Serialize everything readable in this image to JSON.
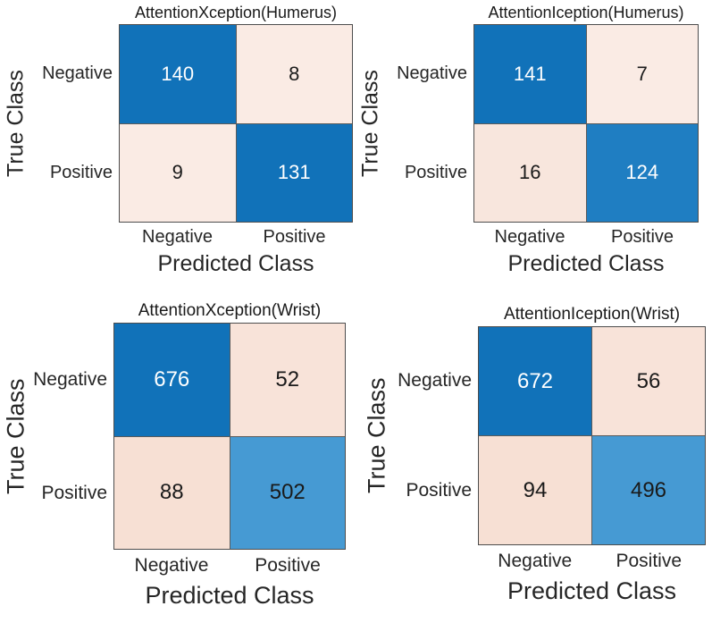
{
  "figure": {
    "background": "#ffffff",
    "layout": "2x2 grid of confusion matrices"
  },
  "colors": {
    "diagonal_dark_blue": "#1172b9",
    "diagonal_medium_blue": "#1f7ec2",
    "diagonal_light_blue": "#469ad3",
    "off_diagonal_pink": "#f9e9e2",
    "cell_divider": "#5a5a5a",
    "matrix_border": "#4d4d4d",
    "text_dark": "#1a1a1a",
    "text_light": "#ffffff"
  },
  "chart_data": [
    {
      "type": "heatmap",
      "title": "AttentionXception(Humerus)",
      "xlabel": "Predicted Class",
      "ylabel": "True Class",
      "x_categories": [
        "Negative",
        "Positive"
      ],
      "y_categories": [
        "Negative",
        "Positive"
      ],
      "matrix": [
        [
          140,
          8
        ],
        [
          9,
          131
        ]
      ],
      "cells": [
        {
          "value": "140",
          "bg": "#1172b9",
          "fg": "#ffffff"
        },
        {
          "value": "8",
          "bg": "#faebe4",
          "fg": "#1a1a1a"
        },
        {
          "value": "9",
          "bg": "#faebe4",
          "fg": "#1a1a1a"
        },
        {
          "value": "131",
          "bg": "#1172b9",
          "fg": "#ffffff"
        }
      ]
    },
    {
      "type": "heatmap",
      "title": "AttentionIception(Humerus)",
      "xlabel": "Predicted Class",
      "ylabel": "True Class",
      "x_categories": [
        "Negative",
        "Positive"
      ],
      "y_categories": [
        "Negative",
        "Positive"
      ],
      "matrix": [
        [
          141,
          7
        ],
        [
          16,
          124
        ]
      ],
      "cells": [
        {
          "value": "141",
          "bg": "#1172b9",
          "fg": "#ffffff"
        },
        {
          "value": "7",
          "bg": "#faebe4",
          "fg": "#1a1a1a"
        },
        {
          "value": "16",
          "bg": "#f8e6dd",
          "fg": "#1a1a1a"
        },
        {
          "value": "124",
          "bg": "#1f7ec2",
          "fg": "#ffffff"
        }
      ]
    },
    {
      "type": "heatmap",
      "title": "AttentionXception(Wrist)",
      "xlabel": "Predicted Class",
      "ylabel": "True Class",
      "x_categories": [
        "Negative",
        "Positive"
      ],
      "y_categories": [
        "Negative",
        "Positive"
      ],
      "matrix": [
        [
          676,
          52
        ],
        [
          88,
          502
        ]
      ],
      "cells": [
        {
          "value": "676",
          "bg": "#1172b9",
          "fg": "#ffffff"
        },
        {
          "value": "52",
          "bg": "#f8e3d9",
          "fg": "#1a1a1a"
        },
        {
          "value": "88",
          "bg": "#f7e0d4",
          "fg": "#1a1a1a"
        },
        {
          "value": "502",
          "bg": "#469ad3",
          "fg": "#1a1a1a"
        }
      ]
    },
    {
      "type": "heatmap",
      "title": "AttentionIception(Wrist)",
      "xlabel": "Predicted Class",
      "ylabel": "True Class",
      "x_categories": [
        "Negative",
        "Positive"
      ],
      "y_categories": [
        "Negative",
        "Positive"
      ],
      "matrix": [
        [
          672,
          56
        ],
        [
          94,
          496
        ]
      ],
      "cells": [
        {
          "value": "672",
          "bg": "#1172b9",
          "fg": "#ffffff"
        },
        {
          "value": "56",
          "bg": "#f8e3d9",
          "fg": "#1a1a1a"
        },
        {
          "value": "94",
          "bg": "#f7e0d4",
          "fg": "#1a1a1a"
        },
        {
          "value": "496",
          "bg": "#469ad3",
          "fg": "#1a1a1a"
        }
      ]
    }
  ]
}
